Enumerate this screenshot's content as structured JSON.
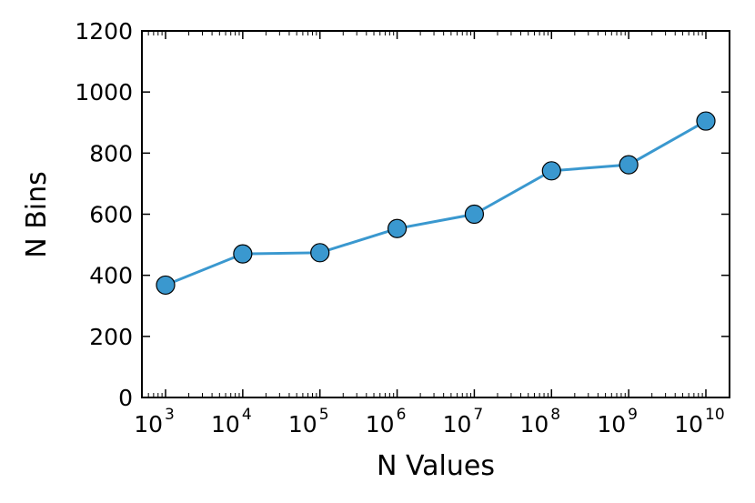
{
  "chart_data": {
    "type": "line",
    "title": "",
    "xlabel": "N Values",
    "ylabel": "N Bins",
    "x_scale": "log",
    "x_base": "10",
    "x": [
      1000,
      10000,
      100000,
      1000000,
      10000000,
      100000000,
      1000000000,
      10000000000
    ],
    "x_tick_exponents": [
      "3",
      "4",
      "5",
      "6",
      "7",
      "8",
      "9",
      "10"
    ],
    "series": [
      {
        "values": [
          368,
          470,
          474,
          553,
          600,
          742,
          762,
          905
        ],
        "color": "#3a98cf",
        "marker": "circle"
      }
    ],
    "ylim": [
      0,
      1200
    ],
    "y_ticks": [
      "0",
      "200",
      "400",
      "600",
      "800",
      "1000",
      "1200"
    ],
    "grid": false,
    "legend": "none"
  }
}
